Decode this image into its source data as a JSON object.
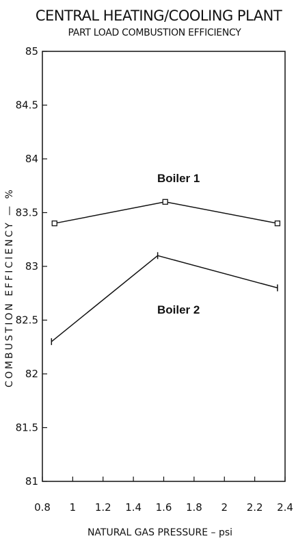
{
  "chart_data": {
    "type": "line",
    "title": "CENTRAL HEATING/COOLING PLANT",
    "subtitle": "PART LOAD COMBUSTION EFFICIENCY",
    "xlabel": "NATURAL GAS PRESSURE – psi",
    "ylabel": "COMBUSTION EFFICIENCY — %",
    "xlim": [
      0.8,
      2.4
    ],
    "ylim": [
      81,
      85
    ],
    "x_ticks": [
      "0.8",
      "1",
      "1.2",
      "1.4",
      "1.6",
      "1.8",
      "2",
      "2.2",
      "2.4"
    ],
    "y_ticks": [
      "85",
      "84.5",
      "84",
      "83.5",
      "83",
      "82.5",
      "82",
      "81.5",
      "81"
    ],
    "grid": false,
    "series": [
      {
        "name": "Boiler 1",
        "marker": "square",
        "x": [
          0.88,
          1.61,
          2.35
        ],
        "y": [
          83.4,
          83.6,
          83.4
        ]
      },
      {
        "name": "Boiler 2",
        "marker": "plus",
        "x": [
          0.86,
          1.56,
          2.35
        ],
        "y": [
          82.3,
          83.1,
          82.8
        ]
      }
    ]
  }
}
